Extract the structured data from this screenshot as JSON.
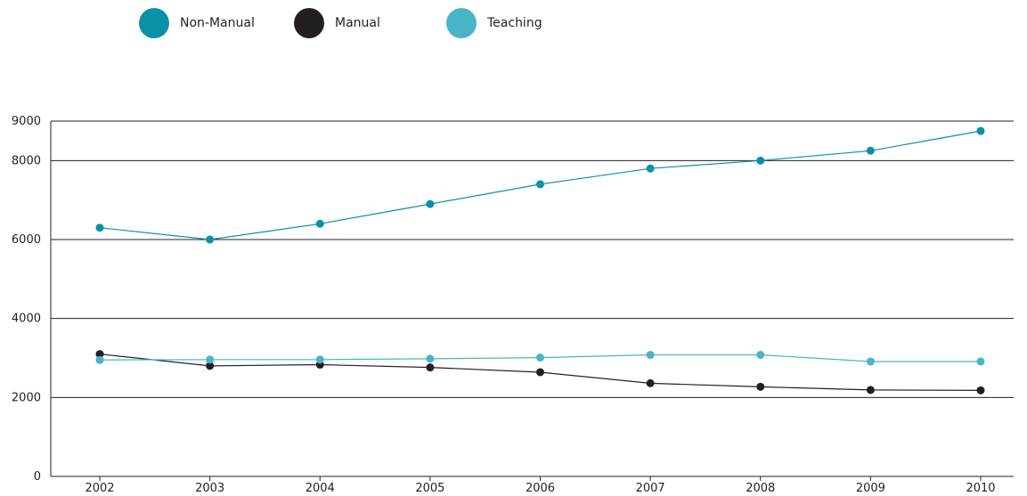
{
  "chart_data": {
    "type": "line",
    "title": "",
    "xlabel": "",
    "ylabel": "",
    "categories": [
      "2002",
      "2003",
      "2004",
      "2005",
      "2006",
      "2007",
      "2008",
      "2009",
      "2010"
    ],
    "ylim": [
      0,
      9000
    ],
    "yticks": [
      0,
      2000,
      4000,
      6000,
      8000,
      9000
    ],
    "ytick_labels": [
      "0",
      "2000",
      "4000",
      "6000",
      "8000",
      "9000"
    ],
    "grid": "horizontal",
    "legend_position": "top-left",
    "series": [
      {
        "name": "Non-Manual",
        "color": "#0a90a8",
        "values": [
          6300,
          6000,
          6400,
          6900,
          7400,
          7800,
          8000,
          8250,
          8750
        ]
      },
      {
        "name": "Manual",
        "color": "#231f20",
        "values": [
          3100,
          2800,
          2830,
          2760,
          2640,
          2360,
          2270,
          2190,
          2180
        ]
      },
      {
        "name": "Teaching",
        "color": "#4ab3c6",
        "values": [
          2950,
          2960,
          2960,
          2980,
          3010,
          3080,
          3080,
          2910,
          2910
        ]
      }
    ]
  }
}
